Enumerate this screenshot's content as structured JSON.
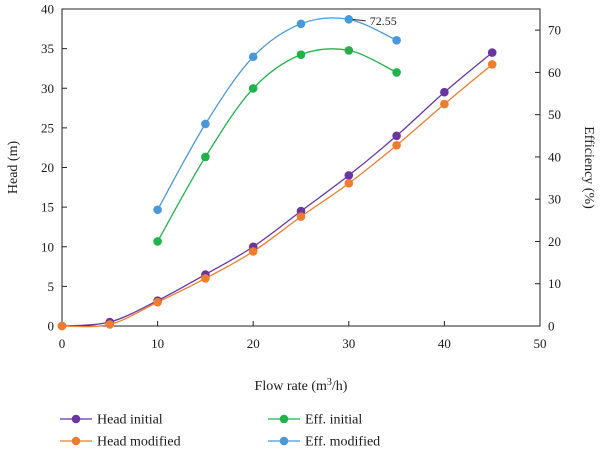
{
  "chart_data": {
    "type": "line",
    "xlabel": "Flow rate (m",
    "xlabel_sup": "3",
    "xlabel_tail": "/h)",
    "ylabel_left": "Head (m)",
    "ylabel_right": "Efficiency (%)",
    "xlim": [
      0,
      50
    ],
    "ylim_left": [
      0,
      40
    ],
    "ylim_right": [
      0,
      75
    ],
    "x_ticks": [
      0,
      10,
      20,
      30,
      40,
      50
    ],
    "y_left_ticks": [
      0,
      5,
      10,
      15,
      20,
      25,
      30,
      35,
      40
    ],
    "y_right_ticks": [
      0,
      10,
      20,
      30,
      40,
      50,
      60,
      70
    ],
    "grid": false,
    "legend_position": "bottom",
    "series": [
      {
        "name": "Head initial",
        "axis": "left",
        "color": "#6a35a0",
        "x": [
          0,
          5,
          10,
          15,
          20,
          25,
          30,
          35,
          40,
          45
        ],
        "y": [
          0,
          0.5,
          3.2,
          6.5,
          10.0,
          14.5,
          19.0,
          24.0,
          29.5,
          34.5
        ]
      },
      {
        "name": "Head modified",
        "axis": "left",
        "color": "#ef7d2d",
        "x": [
          0,
          5,
          10,
          15,
          20,
          25,
          30,
          35,
          40,
          45
        ],
        "y": [
          0,
          0.2,
          3.0,
          6.0,
          9.4,
          13.8,
          18.0,
          22.8,
          28.0,
          33.0
        ]
      },
      {
        "name": "Eff. initial",
        "axis": "right",
        "color": "#1fb34a",
        "x": [
          10,
          15,
          20,
          25,
          30,
          35
        ],
        "y": [
          20.0,
          40.0,
          56.2,
          64.2,
          65.2,
          60.0
        ]
      },
      {
        "name": "Eff. modified",
        "axis": "right",
        "color": "#4a97d9",
        "x": [
          10,
          15,
          20,
          25,
          30,
          35
        ],
        "y": [
          27.5,
          47.8,
          63.7,
          71.5,
          72.55,
          67.6
        ]
      }
    ],
    "annotation": {
      "text": "72.55",
      "series": "Eff. modified",
      "x": 30,
      "y": 72.55
    }
  }
}
